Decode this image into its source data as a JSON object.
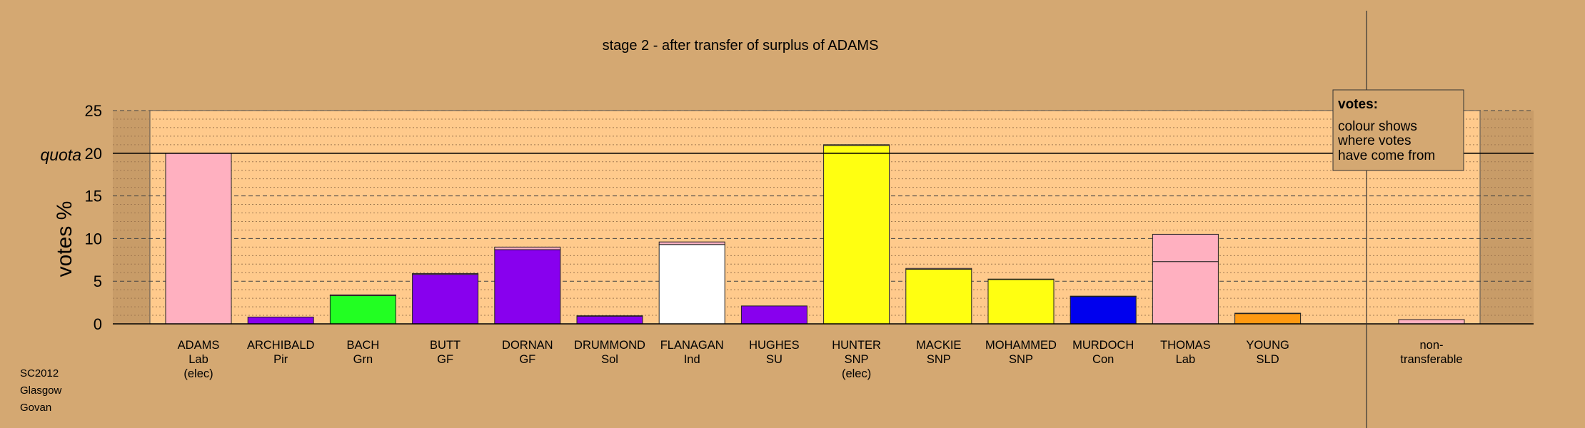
{
  "chart_data": {
    "type": "bar",
    "title": "stage 2 - after transfer of surplus of ADAMS",
    "ylabel": "votes %",
    "ylim": [
      0,
      25
    ],
    "yticks": [
      0,
      5,
      10,
      15,
      20,
      25
    ],
    "quota": 20,
    "quota_label": "quota",
    "grid": true,
    "legend_position": "top-right",
    "legend": {
      "title": "votes:",
      "lines": [
        "colour shows",
        "where votes",
        "have come from"
      ]
    },
    "candidates": [
      {
        "name": "ADAMS",
        "party": "Lab",
        "note": "(elec)",
        "color": "#ffb0c0",
        "segments": [
          {
            "value": 20,
            "color": "#ffb0c0"
          }
        ]
      },
      {
        "name": "ARCHIBALD",
        "party": "Pir",
        "note": "",
        "color": "#8800ee",
        "segments": [
          {
            "value": 0.8,
            "color": "#8800ee"
          }
        ]
      },
      {
        "name": "BACH",
        "party": "Grn",
        "note": "",
        "color": "#22ff22",
        "segments": [
          {
            "value": 3.3,
            "color": "#22ff22"
          },
          {
            "value": 0.1,
            "color": "#ffb0c0"
          }
        ]
      },
      {
        "name": "BUTT",
        "party": "GF",
        "note": "",
        "color": "#8800ee",
        "segments": [
          {
            "value": 5.8,
            "color": "#8800ee"
          },
          {
            "value": 0.1,
            "color": "#ffb0c0"
          }
        ]
      },
      {
        "name": "DORNAN",
        "party": "GF",
        "note": "",
        "color": "#8800ee",
        "segments": [
          {
            "value": 8.7,
            "color": "#8800ee"
          },
          {
            "value": 0.3,
            "color": "#ffb0c0"
          }
        ]
      },
      {
        "name": "DRUMMOND",
        "party": "Sol",
        "note": "",
        "color": "#8800ee",
        "segments": [
          {
            "value": 0.9,
            "color": "#8800ee"
          },
          {
            "value": 0.05,
            "color": "#ffb0c0"
          }
        ]
      },
      {
        "name": "FLANAGAN",
        "party": "Ind",
        "note": "",
        "color": "#ffffff",
        "segments": [
          {
            "value": 9.3,
            "color": "#ffffff"
          },
          {
            "value": 0.3,
            "color": "#ffb0c0"
          }
        ]
      },
      {
        "name": "HUGHES",
        "party": "SU",
        "note": "",
        "color": "#8800ee",
        "segments": [
          {
            "value": 2.1,
            "color": "#8800ee"
          }
        ]
      },
      {
        "name": "HUNTER",
        "party": "SNP",
        "note": "(elec)",
        "color": "#ffff11",
        "segments": [
          {
            "value": 20.9,
            "color": "#ffff11"
          },
          {
            "value": 0.1,
            "color": "#ffb0c0"
          }
        ]
      },
      {
        "name": "MACKIE",
        "party": "SNP",
        "note": "",
        "color": "#ffff11",
        "segments": [
          {
            "value": 6.4,
            "color": "#ffff11"
          },
          {
            "value": 0.1,
            "color": "#ffb0c0"
          }
        ]
      },
      {
        "name": "MOHAMMED",
        "party": "SNP",
        "note": "",
        "color": "#ffff11",
        "segments": [
          {
            "value": 5.2,
            "color": "#ffff11"
          },
          {
            "value": 0.05,
            "color": "#ffb0c0"
          }
        ]
      },
      {
        "name": "MURDOCH",
        "party": "Con",
        "note": "",
        "color": "#0000ee",
        "segments": [
          {
            "value": 3.2,
            "color": "#0000ee"
          },
          {
            "value": 0.05,
            "color": "#ffb0c0"
          }
        ]
      },
      {
        "name": "THOMAS",
        "party": "Lab",
        "note": "",
        "color": "#ffb0c0",
        "segments": [
          {
            "value": 7.3,
            "color": "#ffb0c0"
          },
          {
            "value": 3.2,
            "color": "#ffb0c0"
          }
        ]
      },
      {
        "name": "YOUNG",
        "party": "SLD",
        "note": "",
        "color": "#ff9911",
        "segments": [
          {
            "value": 1.2,
            "color": "#ff9911"
          },
          {
            "value": 0.05,
            "color": "#ffb0c0"
          }
        ]
      }
    ],
    "nontransferable": {
      "label_1": "non-",
      "label_2": "transferable",
      "value": 0.5,
      "color": "#ffb0c0"
    }
  },
  "footer": {
    "line1": "SC2012",
    "line2": "Glasgow",
    "line3": "Govan"
  }
}
